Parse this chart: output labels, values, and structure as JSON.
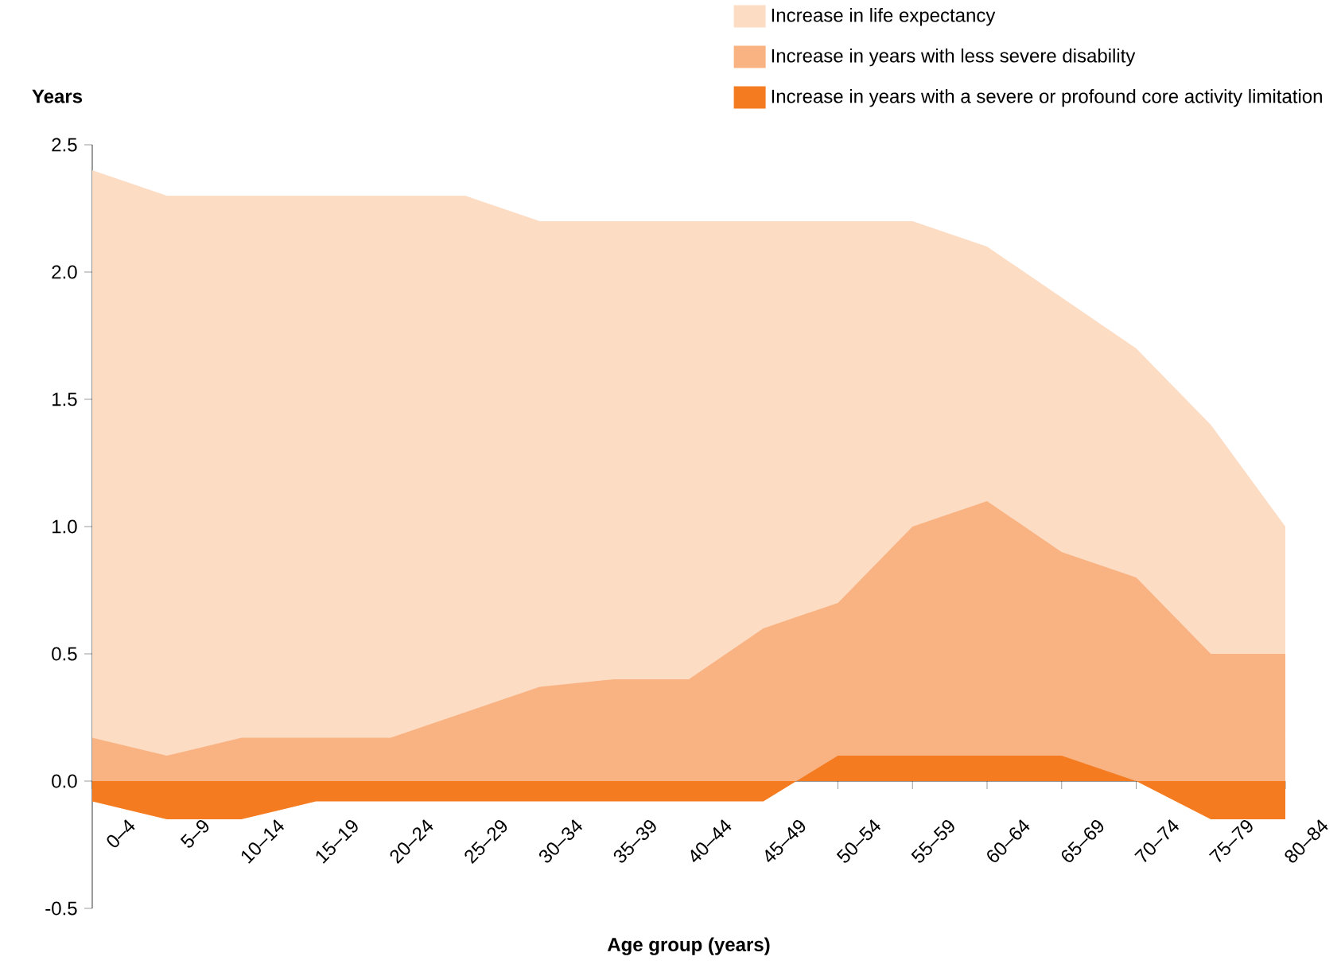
{
  "chart_data": {
    "type": "area",
    "xlabel": "Age group (years)",
    "ylabel": "Years",
    "categories": [
      "0–4",
      "5–9",
      "10–14",
      "15–19",
      "20–24",
      "25–29",
      "30–34",
      "35–39",
      "40–44",
      "45–49",
      "50–54",
      "55–59",
      "60–64",
      "65–69",
      "70–74",
      "75–79",
      "80–84"
    ],
    "series": [
      {
        "name": "Increase in life expectancy",
        "color": "#fddcc4",
        "values": [
          2.4,
          2.3,
          2.3,
          2.3,
          2.3,
          2.3,
          2.2,
          2.2,
          2.2,
          2.2,
          2.2,
          2.2,
          2.1,
          1.9,
          1.7,
          1.4,
          1.0
        ]
      },
      {
        "name": "Increase in years with less severe disability",
        "color": "#f9b383",
        "values": [
          0.17,
          0.1,
          0.17,
          0.17,
          0.17,
          0.27,
          0.37,
          0.4,
          0.4,
          0.6,
          0.7,
          1.0,
          1.1,
          0.9,
          0.8,
          0.5,
          0.5
        ]
      },
      {
        "name": "Increase in years with a severe or profound core activity limitation",
        "color": "#f47b20",
        "values": [
          -0.08,
          -0.15,
          -0.15,
          -0.08,
          -0.08,
          -0.08,
          -0.08,
          -0.08,
          -0.08,
          -0.08,
          0.1,
          0.1,
          0.1,
          0.1,
          0.0,
          -0.15,
          -0.15
        ]
      }
    ],
    "ylim": [
      -0.5,
      2.5
    ],
    "yticks": [
      2.5,
      {
        "value": 2,
        "label": "2.0"
      },
      1.5,
      {
        "value": 1,
        "label": "1.0"
      },
      0.5,
      {
        "value": 0,
        "label": "0.0"
      },
      -0.5
    ],
    "legend": "top right"
  }
}
